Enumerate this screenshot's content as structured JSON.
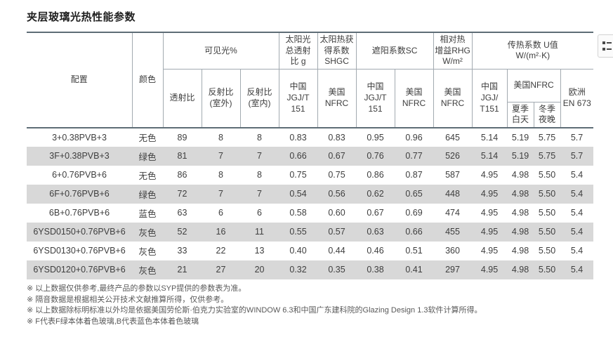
{
  "page": {
    "title": "夹层玻璃光热性能参数"
  },
  "table": {
    "stripe_color": "#d8d8d8",
    "heavy_line_color": "#5e6d76",
    "grid_line_color": "#a2aab0",
    "header": {
      "config": "配置",
      "color": "颜色",
      "visible_light_group": "可见光%",
      "transmittance": "透射比",
      "reflect_out": "反射比\n(室外)",
      "reflect_in": "反射比\n(室内)",
      "solar_g_group": "太阳光\n总透射\n比 g",
      "shgc_group": "太阳热获\n得系数\nSHGC",
      "sc_group": "遮阳系数SC",
      "rhg_group": "相对热\n增益RHG\nW/m²",
      "u_group": "传热系数 U值\nW/(m²·K)",
      "cn_jgjt151": "中国\nJGJ/T\n151",
      "us_nfrc": "美国\nNFRC",
      "u_cn_jgjt151": "中国\nJGJ/\nT151",
      "us_nfrc_inline": "美国NFRC",
      "summer_day": "夏季\n白天",
      "winter_night": "冬季\n夜晚",
      "eu_en673": "欧洲\nEN 673"
    },
    "col_keys": [
      "config",
      "color",
      "visible-transmittance",
      "reflectance-outdoor",
      "reflectance-indoor",
      "g-cn-jgjt151",
      "shgc-us-nfrc",
      "sc-cn-jgjt151",
      "sc-us-nfrc",
      "rhg-us-nfrc",
      "u-cn-jgjt151",
      "u-us-summer-day",
      "u-us-winter-night",
      "u-eu-en673"
    ],
    "rows": [
      [
        "3+0.38PVB+3",
        "无色",
        "89",
        "8",
        "8",
        "0.83",
        "0.83",
        "0.95",
        "0.96",
        "645",
        "5.14",
        "5.19",
        "5.75",
        "5.7"
      ],
      [
        "3F+0.38PVB+3",
        "绿色",
        "81",
        "7",
        "7",
        "0.66",
        "0.67",
        "0.76",
        "0.77",
        "526",
        "5.14",
        "5.19",
        "5.75",
        "5.7"
      ],
      [
        "6+0.76PVB+6",
        "无色",
        "86",
        "8",
        "8",
        "0.75",
        "0.75",
        "0.86",
        "0.87",
        "587",
        "4.95",
        "4.98",
        "5.50",
        "5.4"
      ],
      [
        "6F+0.76PVB+6",
        "绿色",
        "72",
        "7",
        "7",
        "0.54",
        "0.56",
        "0.62",
        "0.65",
        "448",
        "4.95",
        "4.98",
        "5.50",
        "5.4"
      ],
      [
        "6B+0.76PVB+6",
        "蓝色",
        "63",
        "6",
        "6",
        "0.58",
        "0.60",
        "0.67",
        "0.69",
        "474",
        "4.95",
        "4.98",
        "5.50",
        "5.4"
      ],
      [
        "6YSD0150+0.76PVB+6",
        "灰色",
        "52",
        "16",
        "11",
        "0.55",
        "0.57",
        "0.63",
        "0.66",
        "455",
        "4.95",
        "4.98",
        "5.50",
        "5.4"
      ],
      [
        "6YSD0130+0.76PVB+6",
        "灰色",
        "33",
        "22",
        "13",
        "0.40",
        "0.44",
        "0.46",
        "0.51",
        "360",
        "4.95",
        "4.98",
        "5.50",
        "5.4"
      ],
      [
        "6YSD0120+0.76PVB+6",
        "灰色",
        "21",
        "27",
        "20",
        "0.32",
        "0.35",
        "0.38",
        "0.41",
        "297",
        "4.95",
        "4.98",
        "5.50",
        "5.4"
      ]
    ]
  },
  "footnotes": [
    "※ 以上数据仅供参考,最终产品的参数以SYP提供的参数表为准。",
    "※ 隔音数据是根据相关公开技术文献推算所得，仅供参考。",
    "※ 以上数据除标明标准以外均是依据美国劳伦斯·伯克力实验室的WINDOW 6.3和中国广东建科院的Glazing Design 1.3软件计算所得。",
    "※ F代表F绿本体着色玻璃,B代表蓝色本体着色玻璃"
  ]
}
